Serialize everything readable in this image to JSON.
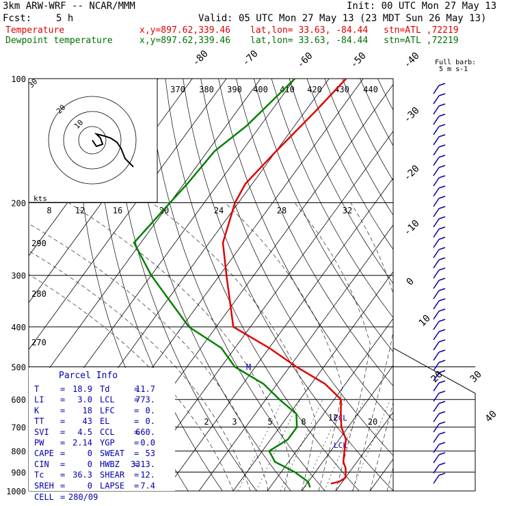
{
  "header": {
    "model": "3km ARW-WRF -- NCAR/MMM",
    "init": "Init: 00 UTC Mon 27 May 13",
    "fcst_label": "Fcst:",
    "fcst_value": "5 h",
    "valid": "Valid: 05 UTC Mon 27 May 13 (23 MDT Sun 26 May 13)",
    "temp_line": {
      "label": "Temperature",
      "xy": "x,y=897.62,339.46",
      "latlon": "lat,lon= 33.63, -84.44",
      "stn": "stn=ATL ,72219"
    },
    "dew_line": {
      "label": "Dewpoint temperature",
      "xy": "x,y=897.62,339.46",
      "latlon": "lat,lon= 33.63, -84.44",
      "stn": "stn=ATL ,72219"
    }
  },
  "colors": {
    "temperature": "#e00000",
    "dewpoint": "#008000",
    "wind": "#0000aa",
    "text_blue": "#0000aa"
  },
  "chart_data": {
    "type": "line",
    "y_axis": "pressure (hPa, log scale)",
    "pressure_ticks": [
      "100",
      "200",
      "300",
      "400",
      "500",
      "600",
      "700",
      "800",
      "900",
      "1000"
    ],
    "pressure_levels": [
      100,
      200,
      300,
      400,
      500,
      600,
      700,
      800,
      900,
      1000
    ],
    "isotherm_labels": [
      "-80",
      "-70",
      "-60",
      "-50",
      "-40",
      "-30",
      "-20",
      "-10",
      "0",
      "10",
      "20",
      "30",
      "40"
    ],
    "theta_labels": [
      "370",
      "380",
      "390",
      "400",
      "410",
      "420",
      "430",
      "440"
    ],
    "theta_left_labels": [
      "290",
      "280",
      "270"
    ],
    "mixing_ratio_labels": [
      "2",
      "3",
      "5",
      "8",
      "12",
      "20"
    ],
    "full_barb_label": "Full barb:",
    "full_barb_value": "5 m s-1",
    "hodograph": {
      "units": "kts",
      "rings": [
        "8",
        "12",
        "16",
        "20",
        "24",
        "28",
        "32"
      ],
      "ring_labels": [
        "30",
        "20",
        "10"
      ]
    },
    "annotations": {
      "lcl": "LCL",
      "ccl": "CCL",
      "marker": "M"
    },
    "series": [
      {
        "name": "Temperature",
        "points": [
          [
            -65,
            100
          ],
          [
            -67,
            120
          ],
          [
            -70,
            150
          ],
          [
            -72,
            180
          ],
          [
            -71,
            200
          ],
          [
            -66,
            250
          ],
          [
            -58,
            300
          ],
          [
            -45,
            400
          ],
          [
            -30,
            450
          ],
          [
            -18,
            500
          ],
          [
            -6,
            550
          ],
          [
            2,
            600
          ],
          [
            5,
            650
          ],
          [
            8,
            700
          ],
          [
            12,
            750
          ],
          [
            14,
            800
          ],
          [
            16,
            850
          ],
          [
            18,
            880
          ],
          [
            18.9,
            900
          ],
          [
            20,
            930
          ],
          [
            19,
            950
          ],
          [
            17,
            960
          ]
        ]
      },
      {
        "name": "Dewpoint temperature",
        "points": [
          [
            -80,
            100
          ],
          [
            -84,
            130
          ],
          [
            -88,
            150
          ],
          [
            -89,
            180
          ],
          [
            -90,
            200
          ],
          [
            -92,
            250
          ],
          [
            -80,
            300
          ],
          [
            -58,
            400
          ],
          [
            -44,
            450
          ],
          [
            -36,
            500
          ],
          [
            -24,
            550
          ],
          [
            -16,
            600
          ],
          [
            -8,
            650
          ],
          [
            -5,
            700
          ],
          [
            -5,
            750
          ],
          [
            -8,
            800
          ],
          [
            -4,
            850
          ],
          [
            4,
            900
          ],
          [
            10,
            950
          ],
          [
            11.7,
            980
          ]
        ]
      }
    ],
    "hodograph_trace": [
      [
        0,
        0
      ],
      [
        2,
        3
      ],
      [
        5,
        2
      ],
      [
        4,
        -1
      ],
      [
        2,
        -3
      ],
      [
        6,
        -2
      ],
      [
        9,
        -1
      ],
      [
        12,
        1
      ],
      [
        14,
        4
      ],
      [
        16,
        9
      ],
      [
        20,
        13
      ]
    ]
  },
  "parcel_info": {
    "title": "Parcel Info",
    "rows": [
      [
        {
          "k": "T",
          "v": "18.9"
        },
        {
          "k": "Td",
          "v": "11.7"
        }
      ],
      [
        {
          "k": "LI",
          "v": "3.0"
        },
        {
          "k": "LCL",
          "v": "773."
        }
      ],
      [
        {
          "k": "K",
          "v": "18"
        },
        {
          "k": "LFC",
          "v": "0."
        }
      ],
      [
        {
          "k": "TT",
          "v": "43"
        },
        {
          "k": "EL",
          "v": "0."
        }
      ],
      [
        {
          "k": "SVI",
          "v": "4.5"
        },
        {
          "k": "CCL",
          "v": "660."
        }
      ],
      [
        {
          "k": "PW",
          "v": "2.14"
        },
        {
          "k": "YGP",
          "v": "0.0"
        }
      ],
      [
        {
          "k": "CAPE",
          "v": "0"
        },
        {
          "k": "SWEAT",
          "v": "53"
        }
      ],
      [
        {
          "k": "CIN",
          "v": "0"
        },
        {
          "k": "HWBZ",
          "v": "3313."
        }
      ],
      [
        {
          "k": "Tc",
          "v": "36.3"
        },
        {
          "k": "SHEAR",
          "v": "12."
        }
      ],
      [
        {
          "k": "SREH",
          "v": "0"
        },
        {
          "k": "LAPSE",
          "v": "7.4"
        }
      ]
    ],
    "cell_label": "CELL",
    "cell_value": "280/09"
  }
}
